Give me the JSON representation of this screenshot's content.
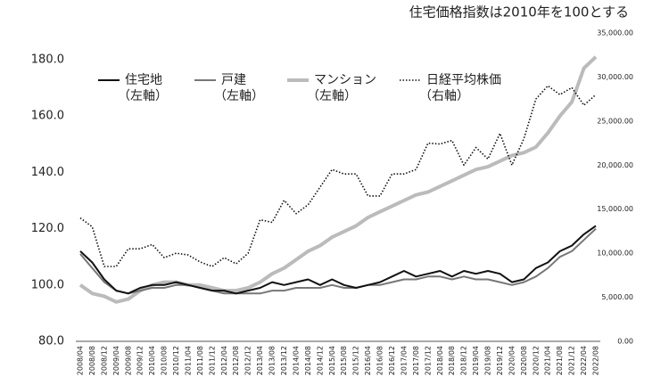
{
  "chart_data": {
    "type": "line",
    "title": "住宅価格指数は2010年を100とする",
    "categories": [
      "2008/04",
      "2008/08",
      "2008/12",
      "2009/04",
      "2009/08",
      "2009/12",
      "2010/04",
      "2010/08",
      "2010/12",
      "2011/04",
      "2011/08",
      "2011/12",
      "2012/04",
      "2012/08",
      "2012/12",
      "2013/04",
      "2013/08",
      "2013/12",
      "2014/04",
      "2014/08",
      "2014/12",
      "2015/04",
      "2015/08",
      "2015/12",
      "2016/04",
      "2016/08",
      "2016/12",
      "2017/04",
      "2017/08",
      "2017/12",
      "2018/04",
      "2018/08",
      "2018/12",
      "2019/04",
      "2019/08",
      "2019/12",
      "2020/04",
      "2020/08",
      "2020/12",
      "2021/04",
      "2021/08",
      "2021/12",
      "2022/04",
      "2022/08"
    ],
    "series": [
      {
        "name": "住宅地",
        "axis_label": "（左軸）",
        "color": "#111111",
        "style": "solid",
        "width": 2,
        "values": [
          112,
          108,
          102,
          98,
          97,
          99,
          100,
          100,
          101,
          100,
          99,
          98,
          98,
          97,
          98,
          99,
          101,
          100,
          101,
          102,
          100,
          102,
          100,
          99,
          100,
          101,
          103,
          105,
          103,
          104,
          105,
          103,
          105,
          104,
          105,
          104,
          101,
          102,
          106,
          108,
          112,
          114,
          118,
          121
        ]
      },
      {
        "name": "戸建",
        "axis_label": "（左軸）",
        "color": "#777777",
        "style": "solid",
        "width": 2,
        "values": [
          111,
          106,
          101,
          98,
          97,
          98,
          99,
          99,
          100,
          100,
          99,
          98,
          97,
          97,
          97,
          97,
          98,
          98,
          99,
          99,
          99,
          100,
          99,
          99,
          100,
          100,
          101,
          102,
          102,
          103,
          103,
          102,
          103,
          102,
          102,
          101,
          100,
          101,
          103,
          106,
          110,
          112,
          116,
          120
        ]
      },
      {
        "name": "マンション",
        "axis_label": "（左軸）",
        "color": "#bbbbbb",
        "style": "solid",
        "width": 4,
        "values": [
          100,
          97,
          96,
          94,
          95,
          98,
          100,
          101,
          101,
          100,
          100,
          99,
          98,
          98,
          99,
          101,
          104,
          106,
          109,
          112,
          114,
          117,
          119,
          121,
          124,
          126,
          128,
          130,
          132,
          133,
          135,
          137,
          139,
          141,
          142,
          144,
          146,
          147,
          149,
          154,
          160,
          165,
          177,
          181
        ]
      },
      {
        "name": "日経平均株価",
        "axis_label": "（右軸）",
        "color": "#111111",
        "style": "dotted",
        "width": 1.6,
        "axis": "y2",
        "values": [
          14000,
          13000,
          8500,
          8500,
          10500,
          10500,
          11000,
          9500,
          10000,
          9800,
          9000,
          8500,
          9500,
          8800,
          10000,
          13800,
          13500,
          16000,
          14500,
          15500,
          17500,
          19500,
          19000,
          19000,
          16500,
          16500,
          19000,
          19000,
          19500,
          22500,
          22400,
          22800,
          20000,
          22000,
          20700,
          23600,
          20000,
          23000,
          27500,
          29000,
          28000,
          28800,
          26800,
          28000
        ]
      }
    ],
    "ylim": [
      80,
      180
    ],
    "yticks": [
      {
        "value": 80,
        "label": "80.0"
      },
      {
        "value": 100,
        "label": "100.0"
      },
      {
        "value": 120,
        "label": "120.0"
      },
      {
        "value": 140,
        "label": "140.0"
      },
      {
        "value": 160,
        "label": "160.0"
      },
      {
        "value": 180,
        "label": "180.0"
      }
    ],
    "y2lim": [
      0,
      35000
    ],
    "y2ticks": [
      {
        "value": 0,
        "label": "0.00"
      },
      {
        "value": 5000,
        "label": "5,000.00"
      },
      {
        "value": 10000,
        "label": "10,000.00"
      },
      {
        "value": 15000,
        "label": "15,000.00"
      },
      {
        "value": 20000,
        "label": "20,000.00"
      },
      {
        "value": 25000,
        "label": "25,000.00"
      },
      {
        "value": 30000,
        "label": "30,000.00"
      },
      {
        "value": 35000,
        "label": "35,000.00"
      }
    ],
    "grid": false
  }
}
